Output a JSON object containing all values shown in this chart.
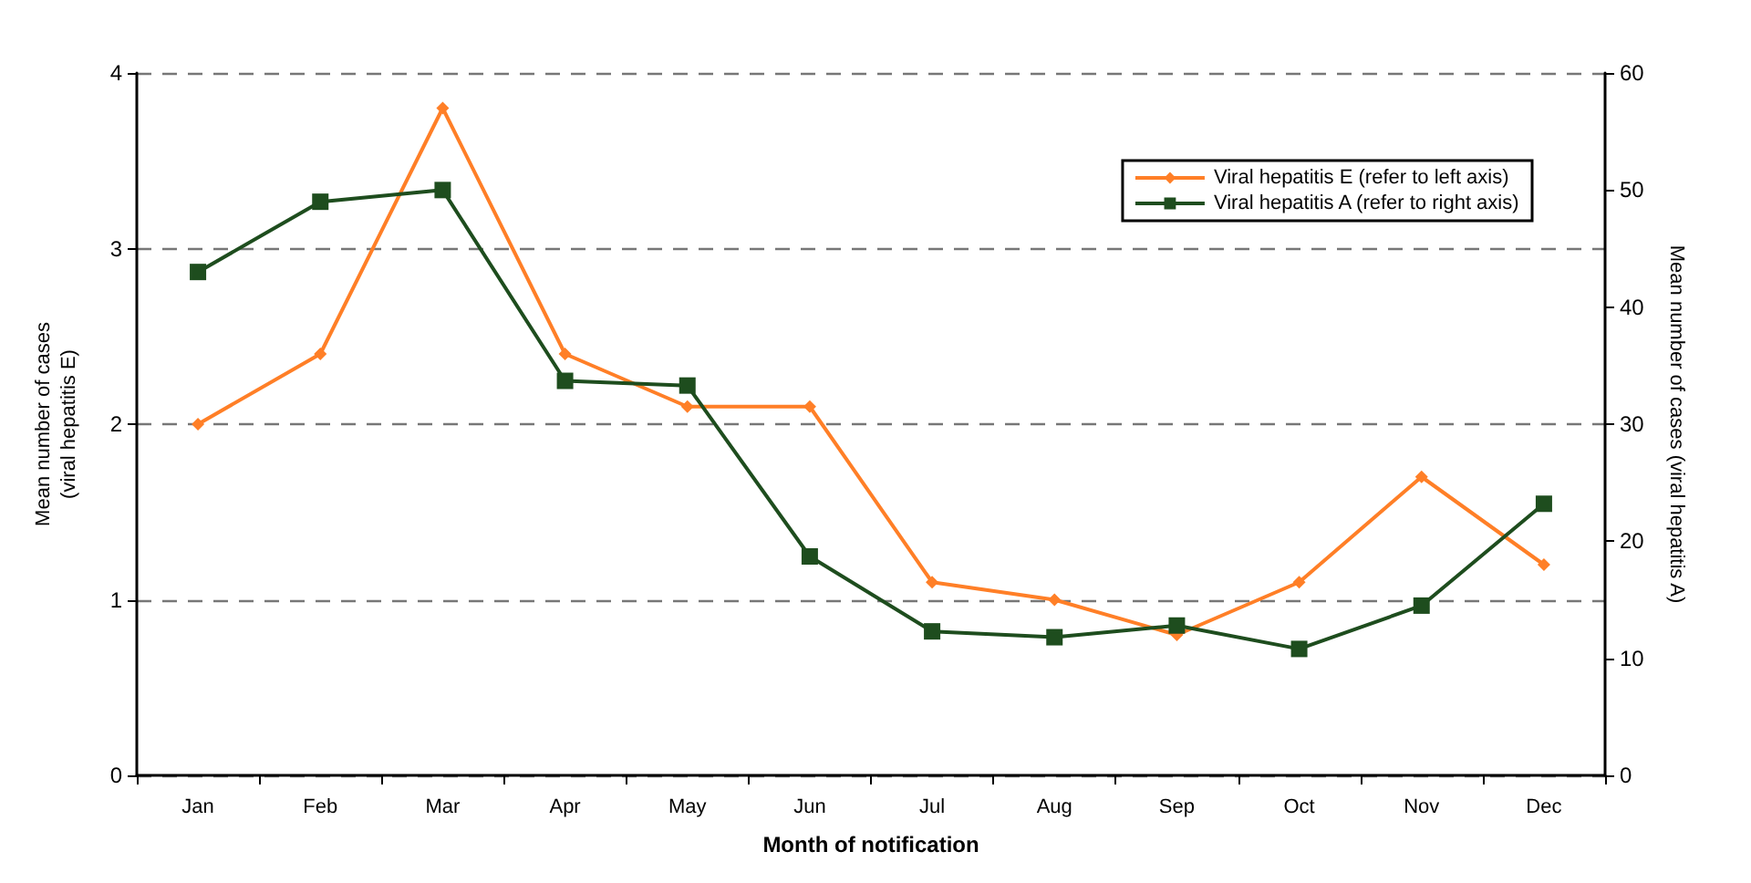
{
  "chart_data": {
    "type": "line",
    "xlabel": "Month of notification",
    "ylabel": "Mean number of cases\n(viral hepatitis E)",
    "y2label": "Mean number of cases (viral hepatitis A)",
    "categories": [
      "Jan",
      "Feb",
      "Mar",
      "Apr",
      "May",
      "Jun",
      "Jul",
      "Aug",
      "Sep",
      "Oct",
      "Nov",
      "Dec"
    ],
    "series": [
      {
        "name": "Viral hepatitis E (refer to left axis)",
        "color": "#ff7f27",
        "marker": "diamond",
        "values": [
          2.0,
          2.4,
          3.8,
          2.4,
          2.1,
          2.1,
          1.1,
          1.0,
          0.8,
          1.1,
          1.7,
          1.2
        ]
      },
      {
        "name": "Viral hepatitis A (refer to right axis)",
        "color": "#1e4d1e",
        "marker": "square",
        "axis": "y2",
        "values": [
          43,
          49,
          50,
          33.7,
          33.3,
          18.7,
          12.3,
          11.8,
          12.8,
          10.8,
          14.5,
          23.2
        ]
      }
    ],
    "ylim": [
      0,
      4
    ],
    "yticks": [
      0,
      1,
      2,
      3,
      4
    ],
    "y2lim": [
      0,
      60
    ],
    "y2ticks": [
      0,
      10,
      20,
      30,
      40,
      50,
      60
    ],
    "grid": "y",
    "legend": "top right"
  }
}
